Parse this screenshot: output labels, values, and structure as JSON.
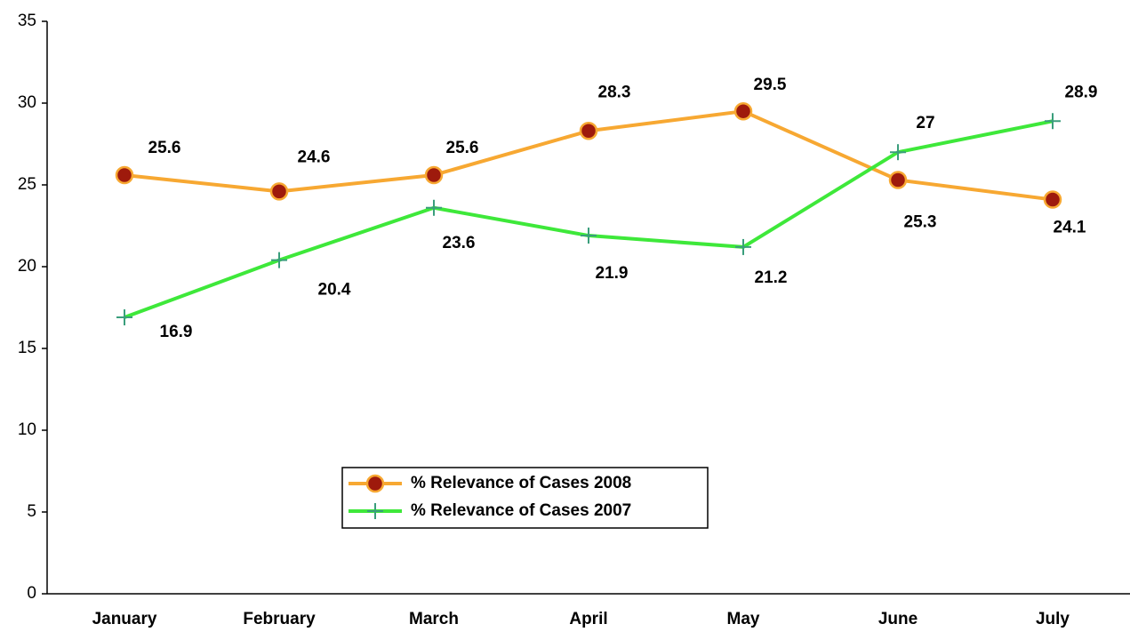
{
  "chart_data": {
    "type": "line",
    "categories": [
      "January",
      "February",
      "March",
      "April",
      "May",
      "June",
      "July"
    ],
    "series": [
      {
        "name": "% Relevance of Cases 2008",
        "color": "#f7a832",
        "marker": "circle",
        "marker_color": "#9e1a0c",
        "values": [
          25.6,
          24.6,
          25.6,
          28.3,
          29.5,
          25.3,
          24.1
        ]
      },
      {
        "name": "% Relevance of Cases 2007",
        "color": "#3ee83a",
        "marker": "plus",
        "marker_color": "#3a9e7c",
        "values": [
          16.9,
          20.4,
          23.6,
          21.9,
          21.2,
          27,
          28.9
        ]
      }
    ],
    "ylim": [
      0,
      35
    ],
    "yticks": [
      0,
      5,
      10,
      15,
      20,
      25,
      30,
      35
    ],
    "grid": false
  }
}
